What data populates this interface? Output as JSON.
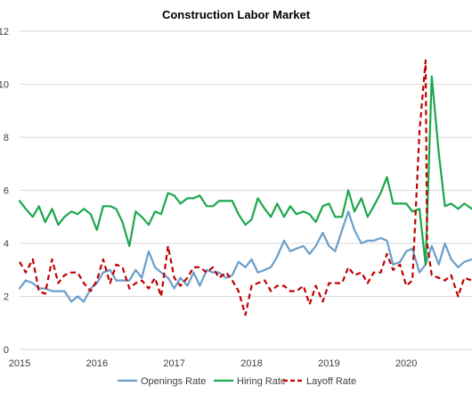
{
  "chart_data": {
    "type": "line",
    "title": "Construction Labor Market",
    "xlabel": "",
    "ylabel": "",
    "ylim": [
      0,
      12
    ],
    "yticks": [
      "0",
      "2",
      "4",
      "6",
      "8",
      "10",
      "12"
    ],
    "xlim": [
      2015.0,
      2020.85
    ],
    "xticks": [
      "2015",
      "2016",
      "2017",
      "2018",
      "2019",
      "2020",
      "2021"
    ],
    "grid": "horizontal",
    "legend": "bottom",
    "series": [
      {
        "name": "Openings Rate",
        "color": "#6a9ec9",
        "dash": "solid",
        "points": [
          [
            2015.0,
            2.3
          ],
          [
            2015.08,
            2.6
          ],
          [
            2015.17,
            2.5
          ],
          [
            2015.25,
            2.3
          ],
          [
            2015.33,
            2.3
          ],
          [
            2015.42,
            2.2
          ],
          [
            2015.5,
            2.2
          ],
          [
            2015.58,
            2.2
          ],
          [
            2015.67,
            1.8
          ],
          [
            2015.75,
            2.0
          ],
          [
            2015.83,
            1.8
          ],
          [
            2015.92,
            2.3
          ],
          [
            2016.0,
            2.5
          ],
          [
            2016.08,
            2.9
          ],
          [
            2016.17,
            3.0
          ],
          [
            2016.25,
            2.6
          ],
          [
            2016.33,
            2.6
          ],
          [
            2016.42,
            2.6
          ],
          [
            2016.5,
            3.0
          ],
          [
            2016.58,
            2.7
          ],
          [
            2016.67,
            3.7
          ],
          [
            2016.75,
            3.1
          ],
          [
            2016.83,
            2.9
          ],
          [
            2016.92,
            2.7
          ],
          [
            2017.0,
            2.3
          ],
          [
            2017.08,
            2.7
          ],
          [
            2017.17,
            2.4
          ],
          [
            2017.25,
            2.9
          ],
          [
            2017.33,
            2.4
          ],
          [
            2017.42,
            3.0
          ],
          [
            2017.5,
            2.9
          ],
          [
            2017.58,
            2.9
          ],
          [
            2017.67,
            2.7
          ],
          [
            2017.75,
            2.8
          ],
          [
            2017.83,
            3.3
          ],
          [
            2017.92,
            3.1
          ],
          [
            2018.0,
            3.4
          ],
          [
            2018.08,
            2.9
          ],
          [
            2018.17,
            3.0
          ],
          [
            2018.25,
            3.1
          ],
          [
            2018.33,
            3.5
          ],
          [
            2018.42,
            4.1
          ],
          [
            2018.5,
            3.7
          ],
          [
            2018.58,
            3.8
          ],
          [
            2018.67,
            3.9
          ],
          [
            2018.75,
            3.6
          ],
          [
            2018.83,
            3.9
          ],
          [
            2018.92,
            4.4
          ],
          [
            2019.0,
            3.9
          ],
          [
            2019.08,
            3.7
          ],
          [
            2019.17,
            4.5
          ],
          [
            2019.25,
            5.2
          ],
          [
            2019.33,
            4.5
          ],
          [
            2019.42,
            4.0
          ],
          [
            2019.5,
            4.1
          ],
          [
            2019.58,
            4.1
          ],
          [
            2019.67,
            4.2
          ],
          [
            2019.75,
            4.1
          ],
          [
            2019.83,
            3.2
          ],
          [
            2019.92,
            3.3
          ],
          [
            2020.0,
            3.7
          ],
          [
            2020.08,
            3.8
          ],
          [
            2020.17,
            2.9
          ],
          [
            2020.25,
            3.2
          ],
          [
            2020.33,
            3.9
          ],
          [
            2020.42,
            3.2
          ],
          [
            2020.5,
            4.0
          ],
          [
            2020.58,
            3.4
          ],
          [
            2020.67,
            3.1
          ],
          [
            2020.75,
            3.3
          ],
          [
            2020.85,
            3.4
          ]
        ]
      },
      {
        "name": "Hiring Rate",
        "color": "#1aa84a",
        "dash": "solid",
        "points": [
          [
            2015.0,
            5.6
          ],
          [
            2015.08,
            5.3
          ],
          [
            2015.17,
            5.0
          ],
          [
            2015.25,
            5.4
          ],
          [
            2015.33,
            4.8
          ],
          [
            2015.42,
            5.3
          ],
          [
            2015.5,
            4.7
          ],
          [
            2015.58,
            5.0
          ],
          [
            2015.67,
            5.2
          ],
          [
            2015.75,
            5.1
          ],
          [
            2015.83,
            5.3
          ],
          [
            2015.92,
            5.1
          ],
          [
            2016.0,
            4.5
          ],
          [
            2016.08,
            5.4
          ],
          [
            2016.17,
            5.4
          ],
          [
            2016.25,
            5.3
          ],
          [
            2016.33,
            4.8
          ],
          [
            2016.42,
            3.9
          ],
          [
            2016.5,
            5.2
          ],
          [
            2016.58,
            5.0
          ],
          [
            2016.67,
            4.7
          ],
          [
            2016.75,
            5.2
          ],
          [
            2016.83,
            5.1
          ],
          [
            2016.92,
            5.9
          ],
          [
            2017.0,
            5.8
          ],
          [
            2017.08,
            5.5
          ],
          [
            2017.17,
            5.7
          ],
          [
            2017.25,
            5.7
          ],
          [
            2017.33,
            5.8
          ],
          [
            2017.42,
            5.4
          ],
          [
            2017.5,
            5.4
          ],
          [
            2017.58,
            5.6
          ],
          [
            2017.67,
            5.6
          ],
          [
            2017.75,
            5.6
          ],
          [
            2017.83,
            5.1
          ],
          [
            2017.92,
            4.7
          ],
          [
            2018.0,
            4.9
          ],
          [
            2018.08,
            5.7
          ],
          [
            2018.17,
            5.3
          ],
          [
            2018.25,
            5.0
          ],
          [
            2018.33,
            5.5
          ],
          [
            2018.42,
            5.0
          ],
          [
            2018.5,
            5.4
          ],
          [
            2018.58,
            5.1
          ],
          [
            2018.67,
            5.2
          ],
          [
            2018.75,
            5.1
          ],
          [
            2018.83,
            4.8
          ],
          [
            2018.92,
            5.4
          ],
          [
            2019.0,
            5.5
          ],
          [
            2019.08,
            5.0
          ],
          [
            2019.17,
            5.0
          ],
          [
            2019.25,
            6.0
          ],
          [
            2019.33,
            5.2
          ],
          [
            2019.42,
            5.7
          ],
          [
            2019.5,
            5.0
          ],
          [
            2019.58,
            5.4
          ],
          [
            2019.67,
            5.9
          ],
          [
            2019.75,
            6.5
          ],
          [
            2019.83,
            5.5
          ],
          [
            2019.92,
            5.5
          ],
          [
            2020.0,
            5.5
          ],
          [
            2020.08,
            5.2
          ],
          [
            2020.17,
            5.3
          ],
          [
            2020.25,
            3.2
          ],
          [
            2020.33,
            10.3
          ],
          [
            2020.42,
            7.4
          ],
          [
            2020.5,
            5.4
          ],
          [
            2020.58,
            5.5
          ],
          [
            2020.67,
            5.3
          ],
          [
            2020.75,
            5.5
          ],
          [
            2020.85,
            5.3
          ]
        ]
      },
      {
        "name": "Layoff Rate",
        "color": "#c00000",
        "dash": "dashed",
        "points": [
          [
            2015.0,
            3.3
          ],
          [
            2015.08,
            2.9
          ],
          [
            2015.17,
            3.4
          ],
          [
            2015.25,
            2.2
          ],
          [
            2015.33,
            2.1
          ],
          [
            2015.42,
            3.4
          ],
          [
            2015.5,
            2.5
          ],
          [
            2015.58,
            2.8
          ],
          [
            2015.67,
            2.9
          ],
          [
            2015.75,
            2.9
          ],
          [
            2015.83,
            2.5
          ],
          [
            2015.92,
            2.2
          ],
          [
            2016.0,
            2.6
          ],
          [
            2016.08,
            3.4
          ],
          [
            2016.17,
            2.5
          ],
          [
            2016.25,
            3.2
          ],
          [
            2016.33,
            3.1
          ],
          [
            2016.42,
            2.3
          ],
          [
            2016.5,
            2.5
          ],
          [
            2016.58,
            2.6
          ],
          [
            2016.67,
            2.3
          ],
          [
            2016.75,
            2.7
          ],
          [
            2016.83,
            2.0
          ],
          [
            2016.92,
            3.9
          ],
          [
            2017.0,
            2.7
          ],
          [
            2017.08,
            2.4
          ],
          [
            2017.17,
            2.7
          ],
          [
            2017.25,
            3.1
          ],
          [
            2017.33,
            3.1
          ],
          [
            2017.42,
            2.9
          ],
          [
            2017.5,
            3.1
          ],
          [
            2017.58,
            2.7
          ],
          [
            2017.67,
            2.9
          ],
          [
            2017.75,
            2.6
          ],
          [
            2017.83,
            2.2
          ],
          [
            2017.92,
            1.3
          ],
          [
            2018.0,
            2.4
          ],
          [
            2018.08,
            2.5
          ],
          [
            2018.17,
            2.6
          ],
          [
            2018.25,
            2.2
          ],
          [
            2018.33,
            2.4
          ],
          [
            2018.42,
            2.4
          ],
          [
            2018.5,
            2.2
          ],
          [
            2018.58,
            2.2
          ],
          [
            2018.67,
            2.4
          ],
          [
            2018.75,
            1.7
          ],
          [
            2018.83,
            2.4
          ],
          [
            2018.92,
            1.8
          ],
          [
            2019.0,
            2.5
          ],
          [
            2019.08,
            2.5
          ],
          [
            2019.17,
            2.5
          ],
          [
            2019.25,
            3.1
          ],
          [
            2019.33,
            2.8
          ],
          [
            2019.42,
            2.9
          ],
          [
            2019.5,
            2.5
          ],
          [
            2019.58,
            2.9
          ],
          [
            2019.67,
            2.9
          ],
          [
            2019.75,
            3.6
          ],
          [
            2019.83,
            3.0
          ],
          [
            2019.92,
            3.2
          ],
          [
            2020.0,
            2.4
          ],
          [
            2020.08,
            2.6
          ],
          [
            2020.17,
            8.2
          ],
          [
            2020.25,
            10.9
          ],
          [
            2020.27,
            4.0
          ],
          [
            2020.33,
            2.8
          ],
          [
            2020.42,
            2.7
          ],
          [
            2020.5,
            2.6
          ],
          [
            2020.58,
            2.8
          ],
          [
            2020.67,
            2.0
          ],
          [
            2020.75,
            2.7
          ],
          [
            2020.85,
            2.6
          ]
        ]
      }
    ]
  }
}
